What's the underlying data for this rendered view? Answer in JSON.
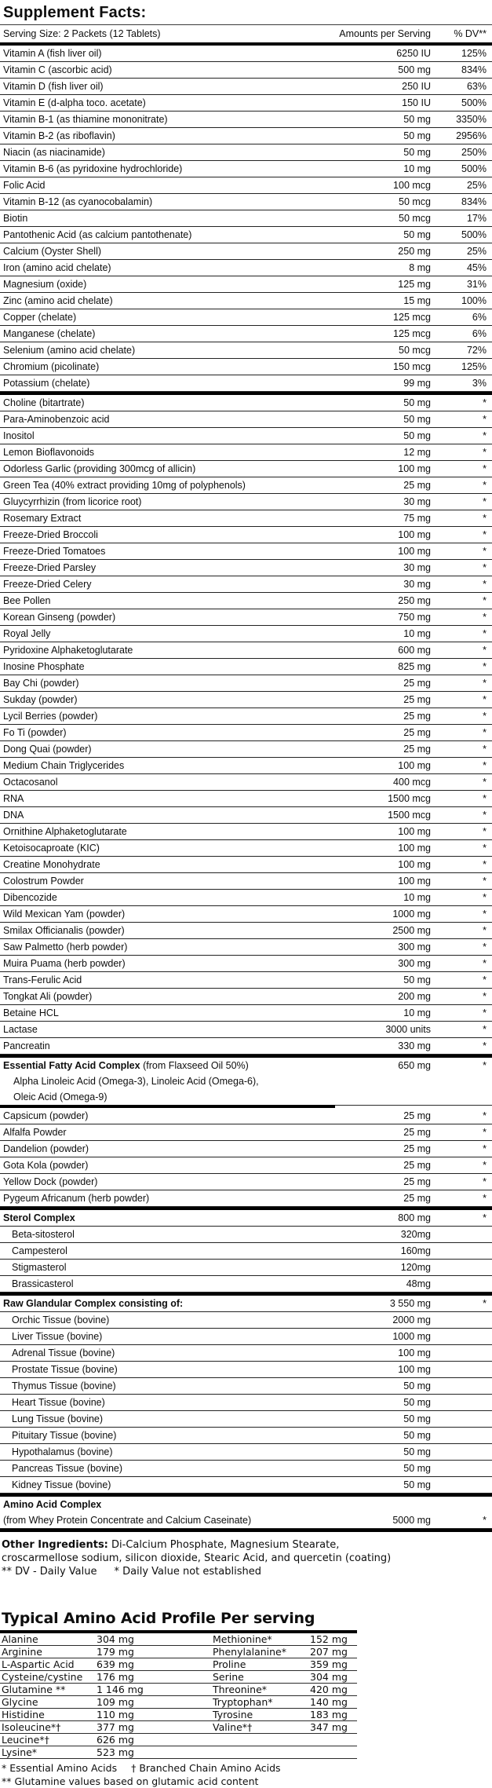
{
  "title": "Supplement Facts:",
  "main_table": {
    "serving_size": "Serving Size: 2 Packets (12 Tablets)",
    "col_amounts": "Amounts per Serving",
    "col_dv": "% DV**",
    "rows": [
      {
        "name": "Vitamin A (fish liver oil)",
        "amount": "6250 IU",
        "dv": "125%"
      },
      {
        "name": "Vitamin C (ascorbic acid)",
        "amount": "500 mg",
        "dv": "834%"
      },
      {
        "name": "Vitamin D (fish liver oil)",
        "amount": "250 IU",
        "dv": "63%"
      },
      {
        "name": "Vitamin E (d-alpha toco. acetate)",
        "amount": "150 IU",
        "dv": "500%"
      },
      {
        "name": "Vitamin B-1 (as thiamine mononitrate)",
        "amount": "50 mg",
        "dv": "3350%"
      },
      {
        "name": "Vitamin B-2 (as riboflavin)",
        "amount": "50 mg",
        "dv": "2956%"
      },
      {
        "name": "Niacin (as niacinamide)",
        "amount": "50 mg",
        "dv": "250%"
      },
      {
        "name": "Vitamin B-6 (as pyridoxine hydrochloride)",
        "amount": "10 mg",
        "dv": "500%"
      },
      {
        "name": "Folic Acid",
        "amount": "100 mcg",
        "dv": "25%"
      },
      {
        "name": "Vitamin B-12 (as cyanocobalamin)",
        "amount": "50 mcg",
        "dv": "834%"
      },
      {
        "name": "Biotin",
        "amount": "50 mcg",
        "dv": "17%"
      },
      {
        "name": "Pantothenic Acid (as calcium pantothenate)",
        "amount": "50 mg",
        "dv": "500%"
      },
      {
        "name": "Calcium (Oyster Shell)",
        "amount": "250 mg",
        "dv": "25%"
      },
      {
        "name": "Iron (amino acid chelate)",
        "amount": "8 mg",
        "dv": "45%"
      },
      {
        "name": "Magnesium (oxide)",
        "amount": "125 mg",
        "dv": "31%"
      },
      {
        "name": "Zinc (amino acid chelate)",
        "amount": "15 mg",
        "dv": "100%"
      },
      {
        "name": "Copper (chelate)",
        "amount": "125 mcg",
        "dv": "6%"
      },
      {
        "name": "Manganese (chelate)",
        "amount": "125 mcg",
        "dv": "6%"
      },
      {
        "name": "Selenium (amino acid chelate)",
        "amount": "50 mcg",
        "dv": "72%"
      },
      {
        "name": "Chromium (picolinate)",
        "amount": "150 mcg",
        "dv": "125%"
      },
      {
        "name": "Potassium (chelate)",
        "amount": "99 mg",
        "dv": "3%",
        "separator_after": "thick"
      },
      {
        "name": "Choline (bitartrate)",
        "amount": "50 mg",
        "dv": "*"
      },
      {
        "name": "Para-Aminobenzoic acid",
        "amount": "50 mg",
        "dv": "*"
      },
      {
        "name": "Inositol",
        "amount": "50 mg",
        "dv": "*"
      },
      {
        "name": "Lemon Bioflavonoids",
        "amount": "12 mg",
        "dv": "*"
      },
      {
        "name": "Odorless Garlic (providing 300mcg of allicin)",
        "amount": "100 mg",
        "dv": "*"
      },
      {
        "name": "Green Tea (40% extract providing 10mg of polyphenols)",
        "amount": "25 mg",
        "dv": "*"
      },
      {
        "name": "Gluycyrrhizin (from licorice root)",
        "amount": "30 mg",
        "dv": "*"
      },
      {
        "name": "Rosemary Extract",
        "amount": "75 mg",
        "dv": "*"
      },
      {
        "name": "Freeze-Dried Broccoli",
        "amount": "100 mg",
        "dv": "*"
      },
      {
        "name": "Freeze-Dried Tomatoes",
        "amount": "100 mg",
        "dv": "*"
      },
      {
        "name": "Freeze-Dried Parsley",
        "amount": "30 mg",
        "dv": "*"
      },
      {
        "name": "Freeze-Dried Celery",
        "amount": "30 mg",
        "dv": "*"
      },
      {
        "name": "Bee Pollen",
        "amount": "250 mg",
        "dv": "*"
      },
      {
        "name": "Korean Ginseng (powder)",
        "amount": "750 mg",
        "dv": "*"
      },
      {
        "name": "Royal Jelly",
        "amount": "10 mg",
        "dv": "*"
      },
      {
        "name": "Pyridoxine Alphaketoglutarate",
        "amount": "600 mg",
        "dv": "*"
      },
      {
        "name": "Inosine Phosphate",
        "amount": "825 mg",
        "dv": "*"
      },
      {
        "name": "Bay Chi (powder)",
        "amount": "25 mg",
        "dv": "*"
      },
      {
        "name": "Sukday (powder)",
        "amount": "25 mg",
        "dv": "*"
      },
      {
        "name": "Lycil Berries (powder)",
        "amount": "25 mg",
        "dv": "*"
      },
      {
        "name": "Fo Ti (powder)",
        "amount": "25 mg",
        "dv": "*"
      },
      {
        "name": "Dong Quai (powder)",
        "amount": "25 mg",
        "dv": "*"
      },
      {
        "name": "Medium Chain Triglycerides",
        "amount": "100 mg",
        "dv": "*"
      },
      {
        "name": "Octacosanol",
        "amount": "400 mcg",
        "dv": "*"
      },
      {
        "name": "RNA",
        "amount": "1500 mcg",
        "dv": "*"
      },
      {
        "name": "DNA",
        "amount": "1500 mcg",
        "dv": "*"
      },
      {
        "name": "Ornithine Alphaketoglutarate",
        "amount": "100 mg",
        "dv": "*"
      },
      {
        "name": "Ketoisocaproate (KIC)",
        "amount": "100 mg",
        "dv": "*"
      },
      {
        "name": "Creatine Monohydrate",
        "amount": "100 mg",
        "dv": "*"
      },
      {
        "name": "Colostrum Powder",
        "amount": "100 mg",
        "dv": "*"
      },
      {
        "name": "Dibencozide",
        "amount": "10 mg",
        "dv": "*"
      },
      {
        "name": "Wild Mexican Yam (powder)",
        "amount": "1000 mg",
        "dv": "*"
      },
      {
        "name": "Smilax Officianalis (powder)",
        "amount": "2500 mg",
        "dv": "*"
      },
      {
        "name": "Saw Palmetto (herb powder)",
        "amount": "300 mg",
        "dv": "*"
      },
      {
        "name": "Muira Puama (herb powder)",
        "amount": "300 mg",
        "dv": "*"
      },
      {
        "name": "Trans-Ferulic Acid",
        "amount": "50 mg",
        "dv": "*"
      },
      {
        "name": "Tongkat Ali (powder)",
        "amount": "200 mg",
        "dv": "*"
      },
      {
        "name": "Betaine HCL",
        "amount": "10 mg",
        "dv": "*"
      },
      {
        "name": "Lactase",
        "amount": "3000 units",
        "dv": "*"
      },
      {
        "name": "Pancreatin",
        "amount": "330 mg",
        "dv": "*",
        "separator_after": "thick"
      },
      {
        "name_bold": "Essential Fatty Acid Complex",
        "name": " (from Flaxseed Oil 50%)",
        "amount": "650 mg",
        "dv": "*",
        "no_border": true
      },
      {
        "name": "Alpha Linoleic Acid (Omega-3), Linoleic Acid (Omega-6),",
        "indent2": true,
        "no_border": true
      },
      {
        "name": "Oleic Acid (Omega-9)",
        "indent2": true,
        "no_border": true,
        "separator_after": "thick-partial"
      },
      {
        "name": "Capsicum (powder)",
        "amount": "25 mg",
        "dv": "*"
      },
      {
        "name": "Alfalfa Powder",
        "amount": "25 mg",
        "dv": "*"
      },
      {
        "name": "Dandelion (powder)",
        "amount": "25 mg",
        "dv": "*"
      },
      {
        "name": "Gota Kola (powder)",
        "amount": "25 mg",
        "dv": "*"
      },
      {
        "name": "Yellow Dock (powder)",
        "amount": "25 mg",
        "dv": "*"
      },
      {
        "name": "Pygeum Africanum (herb powder)",
        "amount": "25 mg",
        "dv": "*",
        "separator_after": "thick"
      },
      {
        "name_bold": "Sterol Complex",
        "amount": "800 mg",
        "dv": "*"
      },
      {
        "name": "Beta-sitosterol",
        "amount": "320mg",
        "indent": true
      },
      {
        "name": "Campesterol",
        "amount": "160mg",
        "indent": true
      },
      {
        "name": "Stigmasterol",
        "amount": "120mg",
        "indent": true
      },
      {
        "name": "Brassicasterol",
        "amount": "48mg",
        "indent": true,
        "separator_after": "thick"
      },
      {
        "name_bold": "Raw Glandular Complex consisting of:",
        "amount": "3 550 mg",
        "dv": "*"
      },
      {
        "name": "Orchic Tissue (bovine)",
        "amount": "2000 mg",
        "indent": true
      },
      {
        "name": "Liver Tissue (bovine)",
        "amount": "1000 mg",
        "indent": true
      },
      {
        "name": "Adrenal Tissue (bovine)",
        "amount": "100 mg",
        "indent": true
      },
      {
        "name": "Prostate Tissue (bovine)",
        "amount": "100 mg",
        "indent": true
      },
      {
        "name": "Thymus Tissue (bovine)",
        "amount": "50 mg",
        "indent": true
      },
      {
        "name": "Heart Tissue (bovine)",
        "amount": "50 mg",
        "indent": true
      },
      {
        "name": "Lung Tissue (bovine)",
        "amount": "50 mg",
        "indent": true
      },
      {
        "name": "Pituitary Tissue (bovine)",
        "amount": "50 mg",
        "indent": true
      },
      {
        "name": "Hypothalamus (bovine)",
        "amount": "50 mg",
        "indent": true
      },
      {
        "name": "Pancreas Tissue (bovine)",
        "amount": "50 mg",
        "indent": true
      },
      {
        "name": "Kidney Tissue (bovine)",
        "amount": "50 mg",
        "indent": true,
        "separator_after": "thick"
      },
      {
        "name_bold": "Amino Acid Complex",
        "no_border": true
      },
      {
        "name": "(from Whey Protein Concentrate and Calcium Caseinate)",
        "amount": "5000 mg",
        "dv": "*",
        "separator_after": "thick"
      }
    ]
  },
  "footer": {
    "other_ingredients_label": "Other Ingredients:",
    "other_ingredients_line1": "Di-Calcium Phosphate, Magnesium Stearate,",
    "other_ingredients_line2": "croscarmellose sodium, silicon dioxide, Stearic Acid, and quercetin (coating)",
    "dv_note": "** DV - Daily Value",
    "star_note": "* Daily Value not established"
  },
  "amino_table": {
    "title": "Typical Amino Acid Profile Per serving",
    "rows": [
      [
        "Alanine",
        "304 mg",
        "Methionine*",
        "152 mg"
      ],
      [
        "Arginine",
        "179 mg",
        "Phenylalanine*",
        "207 mg"
      ],
      [
        "L-Aspartic Acid",
        "639 mg",
        "Proline",
        "359 mg"
      ],
      [
        "Cysteine/cystine",
        "176 mg",
        "Serine",
        "304 mg"
      ],
      [
        "Glutamine **",
        "1 146 mg",
        "Threonine*",
        "420 mg"
      ],
      [
        "Glycine",
        "109 mg",
        "Tryptophan*",
        "140 mg"
      ],
      [
        "Histidine",
        "110 mg",
        "Tyrosine",
        "183 mg"
      ],
      [
        "Isoleucine*†",
        "377 mg",
        "Valine*†",
        "347 mg"
      ],
      [
        "Leucine*†",
        "626 mg",
        "",
        ""
      ],
      [
        "Lysine*",
        "523 mg",
        "",
        ""
      ]
    ],
    "footnote_essential": "* Essential Amino Acids",
    "footnote_branched": "† Branched Chain Amino Acids",
    "footnote_glutamine": "** Glutamine values based on glutamic acid content"
  }
}
